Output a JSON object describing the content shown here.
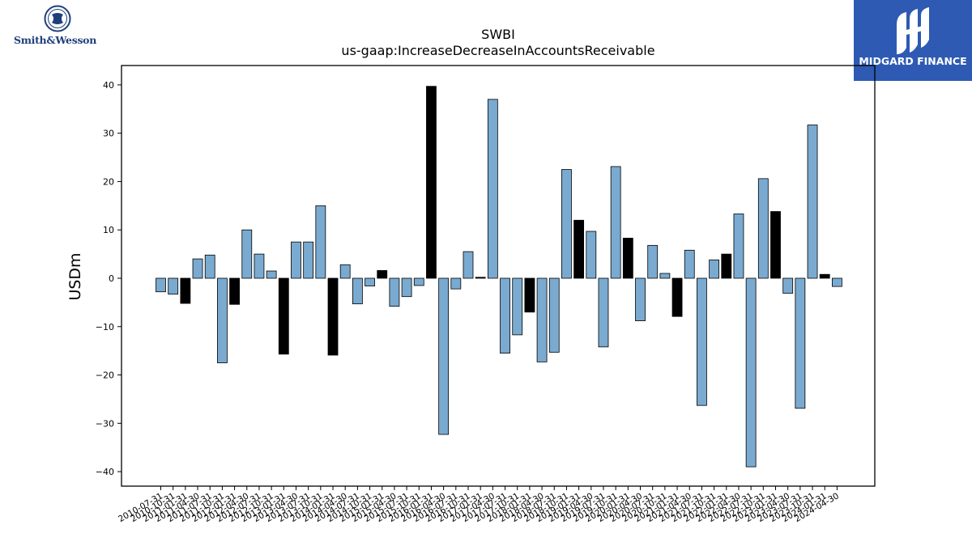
{
  "logos": {
    "left": {
      "text": "Smith&Wesson",
      "icon": "smith-wesson-seal-icon",
      "color": "#1f3f7a"
    },
    "right": {
      "text": "MIDGARD FINANCE",
      "icon": "midgard-mark-icon",
      "background": "#2e5ab3"
    }
  },
  "chart_data": {
    "type": "bar",
    "title": "SWBI",
    "subtitle": "us-gaap:IncreaseDecreaseInAccountsReceivable",
    "xlabel": "",
    "ylabel": "USDm",
    "ylim": [
      -43,
      44
    ],
    "yticks": [
      -40,
      -30,
      -20,
      -10,
      0,
      10,
      20,
      30,
      40
    ],
    "grid": false,
    "colors": {
      "quarterly": "#7aaad0",
      "annual": "#000000",
      "edge": "#000000"
    },
    "categories": [
      "2010-07-31",
      "2010-10-31",
      "2011-01-31",
      "2011-04-30",
      "2011-07-31",
      "2011-10-31",
      "2012-01-31",
      "2012-04-30",
      "2012-07-31",
      "2012-10-31",
      "2013-01-31",
      "2013-04-30",
      "2013-07-31",
      "2013-10-31",
      "2014-01-31",
      "2014-04-30",
      "2014-07-31",
      "2014-10-31",
      "2015-01-31",
      "2015-04-30",
      "2015-07-31",
      "2015-10-31",
      "2016-01-31",
      "2016-04-30",
      "2016-07-31",
      "2016-10-31",
      "2017-01-31",
      "2017-04-30",
      "2017-07-31",
      "2017-10-31",
      "2018-01-31",
      "2018-04-30",
      "2018-07-31",
      "2018-10-31",
      "2019-01-31",
      "2019-04-30",
      "2019-07-31",
      "2019-10-31",
      "2020-01-31",
      "2020-04-30",
      "2020-07-31",
      "2020-10-31",
      "2021-01-31",
      "2021-04-30",
      "2021-07-31",
      "2021-10-31",
      "2022-01-31",
      "2022-04-30",
      "2022-07-31",
      "2022-10-31",
      "2023-01-31",
      "2023-04-30",
      "2023-07-31",
      "2023-10-31",
      "2024-01-31",
      "2024-04-30"
    ],
    "tick_labels": [
      "2010-07-31",
      "2010-10-31",
      "2011-01-31",
      "2011-04-30",
      "2011-07-31",
      "2011-10-31",
      "2012-01-31",
      "2012-04-30",
      "2012-07-31",
      "2012-10-31",
      "2013-01-31",
      "2013-04-30",
      "2013-07-31",
      "2013-10-31",
      "2014-01-31",
      "2014-04-30",
      "2014-07-31",
      "2014-10-31",
      "2015-01-31",
      "2015-04-30",
      "2015-07-31",
      "2015-10-31",
      "2016-01-31",
      "2016-04-30",
      "2016-07-31",
      "2016-10-31",
      "2017-01-31",
      "2017-04-30",
      "2017-07-31",
      "2017-10-31",
      "2018-01-31",
      "2018-04-30",
      "2018-07-31",
      "2018-10-31",
      "2019-01-31",
      "2019-04-30",
      "2019-07-31",
      "2019-10-31",
      "2020-01-31",
      "2020-04-30",
      "2020-07-31",
      "2020-10-31",
      "2021-01-31",
      "2021-04-30",
      "2021-07-31",
      "2021-10-31",
      "2022-01-31",
      "2022-04-30",
      "2022-07-31",
      "2022-10-31",
      "2023-01-31",
      "2023-04-30",
      "2023-07-31",
      "2023-10-31",
      "2024-01-31",
      "2024-04-30"
    ],
    "values": [
      -2.8,
      -3.3,
      -5.2,
      4.0,
      4.8,
      -17.5,
      -5.4,
      10.0,
      5.0,
      1.5,
      -15.7,
      7.5,
      7.5,
      15.0,
      -15.9,
      2.8,
      -5.3,
      -1.6,
      1.6,
      -5.8,
      -3.8,
      -1.5,
      39.7,
      -32.3,
      -2.2,
      5.5,
      0.2,
      37.0,
      -15.5,
      -11.7,
      -7.0,
      -17.3,
      -15.3,
      22.5,
      12.0,
      9.7,
      -14.2,
      23.1,
      8.3,
      -8.8,
      6.8,
      1.0,
      -7.9,
      5.8,
      -26.3,
      3.8,
      5.0,
      13.3,
      -39.0,
      20.6,
      13.8,
      -3.1,
      -26.9,
      31.7,
      0.8,
      -1.7
    ],
    "annual": [
      false,
      false,
      true,
      false,
      false,
      false,
      true,
      false,
      false,
      false,
      true,
      false,
      false,
      false,
      true,
      false,
      false,
      false,
      true,
      false,
      false,
      false,
      true,
      false,
      false,
      false,
      true,
      false,
      false,
      false,
      true,
      false,
      false,
      false,
      true,
      false,
      false,
      false,
      true,
      false,
      false,
      false,
      true,
      false,
      false,
      false,
      true,
      false,
      false,
      false,
      true,
      false,
      false,
      false,
      true,
      false
    ]
  }
}
